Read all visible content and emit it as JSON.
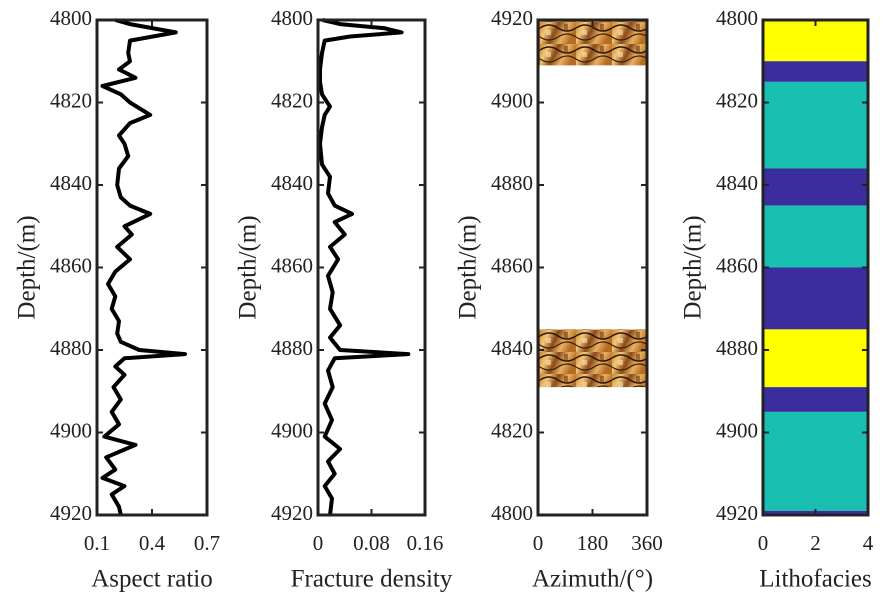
{
  "chart_data": [
    {
      "type": "line",
      "xlabel": "Aspect ratio",
      "ylabel": "Depth/(m)",
      "xlim": [
        0.1,
        0.7
      ],
      "xticks": [
        0.1,
        0.4,
        0.7
      ],
      "ylim": [
        4920,
        4800
      ],
      "yticks": [
        4800,
        4820,
        4840,
        4860,
        4880,
        4900,
        4920
      ],
      "y": [
        4800,
        4801,
        4803,
        4805,
        4808,
        4810,
        4812,
        4814,
        4816,
        4818,
        4820,
        4823,
        4825,
        4828,
        4830,
        4833,
        4836,
        4840,
        4843,
        4845,
        4847,
        4850,
        4852,
        4855,
        4858,
        4861,
        4864,
        4867,
        4870,
        4873,
        4876,
        4878,
        4880,
        4881,
        4882,
        4884,
        4886,
        4889,
        4892,
        4895,
        4898,
        4901,
        4903,
        4906,
        4909,
        4911,
        4913,
        4915,
        4918,
        4920
      ],
      "series": [
        {
          "color": "#000000",
          "values": [
            0.2,
            0.28,
            0.53,
            0.28,
            0.27,
            0.28,
            0.22,
            0.31,
            0.13,
            0.23,
            0.28,
            0.39,
            0.28,
            0.22,
            0.25,
            0.27,
            0.22,
            0.21,
            0.23,
            0.28,
            0.39,
            0.25,
            0.29,
            0.21,
            0.28,
            0.2,
            0.16,
            0.2,
            0.18,
            0.22,
            0.21,
            0.23,
            0.33,
            0.58,
            0.25,
            0.2,
            0.25,
            0.19,
            0.23,
            0.18,
            0.22,
            0.14,
            0.31,
            0.15,
            0.2,
            0.13,
            0.25,
            0.18,
            0.22,
            0.23
          ]
        }
      ]
    },
    {
      "type": "line",
      "xlabel": "Fracture density",
      "ylabel": "Depth/(m)",
      "xlim": [
        0,
        0.16
      ],
      "xticks": [
        0,
        0.08,
        0.16
      ],
      "ylim": [
        4920,
        4800
      ],
      "yticks": [
        4800,
        4820,
        4840,
        4860,
        4880,
        4900,
        4920
      ],
      "y": [
        4800,
        4801,
        4802,
        4803,
        4804,
        4805,
        4808,
        4812,
        4815,
        4818,
        4821,
        4823,
        4826,
        4830,
        4835,
        4838,
        4842,
        4845,
        4847,
        4849,
        4852,
        4855,
        4858,
        4862,
        4866,
        4870,
        4874,
        4877,
        4880,
        4881,
        4882,
        4885,
        4889,
        4893,
        4897,
        4901,
        4904,
        4907,
        4910,
        4913,
        4916,
        4920
      ],
      "series": [
        {
          "color": "#000000",
          "values": [
            0.007,
            0.033,
            0.1,
            0.125,
            0.048,
            0.01,
            0.006,
            0.003,
            0.003,
            0.006,
            0.018,
            0.01,
            0.006,
            0.003,
            0.006,
            0.018,
            0.015,
            0.025,
            0.051,
            0.025,
            0.04,
            0.018,
            0.03,
            0.015,
            0.022,
            0.018,
            0.033,
            0.018,
            0.033,
            0.135,
            0.025,
            0.015,
            0.022,
            0.01,
            0.021,
            0.01,
            0.033,
            0.015,
            0.025,
            0.01,
            0.021,
            0.018
          ]
        }
      ]
    },
    {
      "type": "image",
      "xlabel": "Azimuth/(°)",
      "ylabel": "Depth/(m)",
      "xlim": [
        0,
        360
      ],
      "xticks": [
        0,
        180,
        360
      ],
      "ylim": [
        4800,
        4920
      ],
      "yticks": [
        4800,
        4820,
        4840,
        4860,
        4880,
        4900,
        4920
      ],
      "bands": [
        {
          "top": 4920,
          "bottom": 4909
        },
        {
          "top": 4845,
          "bottom": 4831
        }
      ]
    },
    {
      "type": "facies",
      "xlabel": "Lithofacies",
      "ylabel": "Depth/(m)",
      "xlim": [
        0,
        4
      ],
      "xticks": [
        0,
        2,
        4
      ],
      "ylim": [
        4920,
        4800
      ],
      "yticks": [
        4800,
        4820,
        4840,
        4860,
        4880,
        4900,
        4920
      ],
      "bands": [
        {
          "top": 4800,
          "bottom": 4810,
          "color": "#ffff00"
        },
        {
          "top": 4810,
          "bottom": 4815,
          "color": "#3b2d9d"
        },
        {
          "top": 4815,
          "bottom": 4836,
          "color": "#19bfb1"
        },
        {
          "top": 4836,
          "bottom": 4845,
          "color": "#3b2d9d"
        },
        {
          "top": 4845,
          "bottom": 4860,
          "color": "#19bfb1"
        },
        {
          "top": 4860,
          "bottom": 4875,
          "color": "#3b2d9d"
        },
        {
          "top": 4875,
          "bottom": 4889,
          "color": "#ffff00"
        },
        {
          "top": 4889,
          "bottom": 4895,
          "color": "#3b2d9d"
        },
        {
          "top": 4895,
          "bottom": 4919,
          "color": "#19bfb1"
        },
        {
          "top": 4919,
          "bottom": 4920,
          "color": "#3b2d9d"
        }
      ]
    }
  ]
}
